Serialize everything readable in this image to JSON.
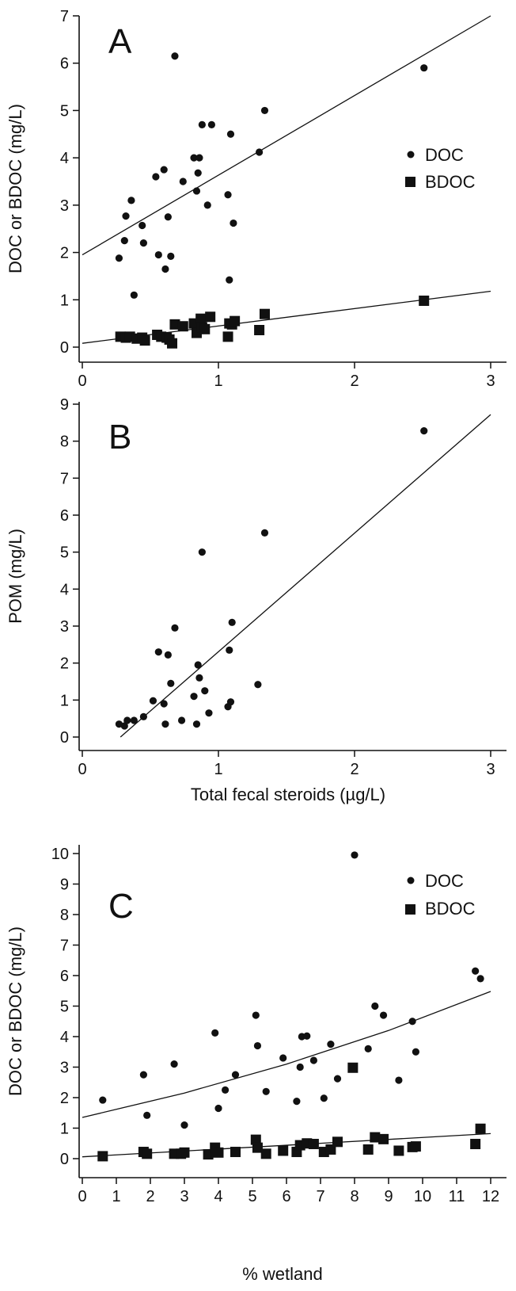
{
  "chart_data": [
    {
      "panel": "A",
      "type": "scatter",
      "xlabel": "",
      "ylabel": "DOC or BDOC (mg/L)",
      "xlim": [
        0,
        3
      ],
      "ylim": [
        0,
        7
      ],
      "xticks": [
        "0",
        "1",
        "2",
        "3"
      ],
      "yticks": [
        "0",
        "1",
        "2",
        "3",
        "4",
        "5",
        "6",
        "7"
      ],
      "legend_position": "right",
      "series": [
        {
          "name": "DOC",
          "marker": "circle",
          "points": [
            [
              0.27,
              1.88
            ],
            [
              0.31,
              2.25
            ],
            [
              0.32,
              2.77
            ],
            [
              0.36,
              3.1
            ],
            [
              0.38,
              1.1
            ],
            [
              0.44,
              2.57
            ],
            [
              0.45,
              2.2
            ],
            [
              0.54,
              3.6
            ],
            [
              0.56,
              1.95
            ],
            [
              0.6,
              3.75
            ],
            [
              0.61,
              1.65
            ],
            [
              0.63,
              2.75
            ],
            [
              0.65,
              1.92
            ],
            [
              0.68,
              6.15
            ],
            [
              0.74,
              3.5
            ],
            [
              0.82,
              4.0
            ],
            [
              0.84,
              3.3
            ],
            [
              0.85,
              3.68
            ],
            [
              0.86,
              4.0
            ],
            [
              0.88,
              4.7
            ],
            [
              0.92,
              3.0
            ],
            [
              0.95,
              4.7
            ],
            [
              1.07,
              3.22
            ],
            [
              1.08,
              1.42
            ],
            [
              1.09,
              4.5
            ],
            [
              1.11,
              2.62
            ],
            [
              1.3,
              4.12
            ],
            [
              1.34,
              5.0
            ],
            [
              2.51,
              5.9
            ]
          ],
          "trend": [
            [
              0,
              1.95
            ],
            [
              3,
              7.0
            ]
          ]
        },
        {
          "name": "BDOC",
          "marker": "square",
          "points": [
            [
              0.28,
              0.22
            ],
            [
              0.32,
              0.2
            ],
            [
              0.35,
              0.22
            ],
            [
              0.4,
              0.18
            ],
            [
              0.44,
              0.2
            ],
            [
              0.46,
              0.14
            ],
            [
              0.55,
              0.26
            ],
            [
              0.58,
              0.22
            ],
            [
              0.62,
              0.2
            ],
            [
              0.64,
              0.16
            ],
            [
              0.66,
              0.08
            ],
            [
              0.68,
              0.48
            ],
            [
              0.74,
              0.44
            ],
            [
              0.82,
              0.5
            ],
            [
              0.84,
              0.3
            ],
            [
              0.87,
              0.6
            ],
            [
              0.88,
              0.42
            ],
            [
              0.9,
              0.38
            ],
            [
              0.94,
              0.64
            ],
            [
              1.07,
              0.22
            ],
            [
              1.08,
              0.5
            ],
            [
              1.1,
              0.48
            ],
            [
              1.12,
              0.55
            ],
            [
              1.3,
              0.36
            ],
            [
              1.34,
              0.7
            ],
            [
              2.51,
              0.98
            ]
          ],
          "trend": [
            [
              0,
              0.08
            ],
            [
              3,
              1.18
            ]
          ]
        }
      ]
    },
    {
      "panel": "B",
      "type": "scatter",
      "xlabel": "Total fecal steroids (µg/L)",
      "ylabel": "POM (mg/L)",
      "xlim": [
        0,
        3
      ],
      "ylim": [
        0,
        9
      ],
      "xticks": [
        "0",
        "1",
        "2",
        "3"
      ],
      "yticks": [
        "0",
        "1",
        "2",
        "3",
        "4",
        "5",
        "6",
        "7",
        "8",
        "9"
      ],
      "series": [
        {
          "marker": "circle",
          "points": [
            [
              0.27,
              0.35
            ],
            [
              0.31,
              0.3
            ],
            [
              0.33,
              0.45
            ],
            [
              0.38,
              0.45
            ],
            [
              0.45,
              0.55
            ],
            [
              0.52,
              0.98
            ],
            [
              0.56,
              2.3
            ],
            [
              0.6,
              0.9
            ],
            [
              0.61,
              0.35
            ],
            [
              0.63,
              2.22
            ],
            [
              0.65,
              1.45
            ],
            [
              0.68,
              2.95
            ],
            [
              0.73,
              0.45
            ],
            [
              0.82,
              1.1
            ],
            [
              0.84,
              0.35
            ],
            [
              0.85,
              1.95
            ],
            [
              0.86,
              1.6
            ],
            [
              0.88,
              5.0
            ],
            [
              0.9,
              1.25
            ],
            [
              0.93,
              0.65
            ],
            [
              1.07,
              0.82
            ],
            [
              1.08,
              2.35
            ],
            [
              1.09,
              0.95
            ],
            [
              1.1,
              3.1
            ],
            [
              1.29,
              1.42
            ],
            [
              1.34,
              5.52
            ],
            [
              2.51,
              8.28
            ]
          ],
          "trend": [
            [
              0.28,
              0.0
            ],
            [
              3,
              8.72
            ]
          ]
        }
      ]
    },
    {
      "panel": "C",
      "type": "scatter",
      "xlabel": "% wetland",
      "ylabel": "DOC or BDOC (mg/L)",
      "xlim": [
        0,
        12
      ],
      "ylim": [
        0,
        10
      ],
      "xticks": [
        "0",
        "1",
        "2",
        "3",
        "4",
        "5",
        "6",
        "7",
        "8",
        "9",
        "10",
        "11",
        "12"
      ],
      "yticks": [
        "0",
        "1",
        "2",
        "3",
        "4",
        "5",
        "6",
        "7",
        "8",
        "9",
        "10"
      ],
      "legend_position": "top-right",
      "series": [
        {
          "name": "DOC",
          "marker": "circle",
          "points": [
            [
              0.6,
              1.92
            ],
            [
              1.8,
              2.75
            ],
            [
              1.9,
              1.42
            ],
            [
              2.7,
              3.1
            ],
            [
              3.0,
              1.1
            ],
            [
              3.9,
              4.12
            ],
            [
              4.0,
              1.65
            ],
            [
              4.2,
              2.25
            ],
            [
              4.5,
              2.75
            ],
            [
              5.1,
              4.7
            ],
            [
              5.15,
              3.7
            ],
            [
              5.4,
              2.2
            ],
            [
              5.9,
              3.3
            ],
            [
              6.3,
              1.88
            ],
            [
              6.4,
              3.0
            ],
            [
              6.45,
              4.0
            ],
            [
              6.6,
              4.02
            ],
            [
              6.8,
              3.22
            ],
            [
              7.1,
              1.98
            ],
            [
              7.3,
              3.75
            ],
            [
              7.5,
              2.62
            ],
            [
              8.0,
              9.95
            ],
            [
              8.4,
              3.6
            ],
            [
              8.6,
              5.0
            ],
            [
              8.85,
              4.7
            ],
            [
              9.3,
              2.57
            ],
            [
              9.7,
              4.5
            ],
            [
              9.8,
              3.5
            ],
            [
              11.55,
              6.15
            ],
            [
              11.7,
              5.9
            ]
          ],
          "trend": [
            [
              0,
              1.35
            ],
            [
              3,
              2.15
            ],
            [
              6,
              3.1
            ],
            [
              9,
              4.2
            ],
            [
              12,
              5.48
            ]
          ]
        },
        {
          "name": "BDOC",
          "marker": "square",
          "points": [
            [
              0.6,
              0.08
            ],
            [
              1.8,
              0.22
            ],
            [
              1.9,
              0.16
            ],
            [
              2.7,
              0.16
            ],
            [
              2.9,
              0.16
            ],
            [
              3.0,
              0.2
            ],
            [
              3.7,
              0.14
            ],
            [
              3.9,
              0.36
            ],
            [
              4.0,
              0.2
            ],
            [
              4.5,
              0.22
            ],
            [
              5.1,
              0.62
            ],
            [
              5.15,
              0.36
            ],
            [
              5.4,
              0.16
            ],
            [
              5.9,
              0.26
            ],
            [
              6.3,
              0.22
            ],
            [
              6.4,
              0.44
            ],
            [
              6.6,
              0.5
            ],
            [
              6.8,
              0.48
            ],
            [
              7.1,
              0.22
            ],
            [
              7.3,
              0.3
            ],
            [
              7.5,
              0.55
            ],
            [
              7.95,
              2.98
            ],
            [
              8.4,
              0.3
            ],
            [
              8.6,
              0.7
            ],
            [
              8.85,
              0.64
            ],
            [
              9.3,
              0.26
            ],
            [
              9.7,
              0.38
            ],
            [
              9.8,
              0.4
            ],
            [
              11.55,
              0.48
            ],
            [
              11.7,
              0.98
            ]
          ],
          "trend": [
            [
              0,
              0.06
            ],
            [
              12,
              0.82
            ]
          ]
        }
      ]
    }
  ]
}
